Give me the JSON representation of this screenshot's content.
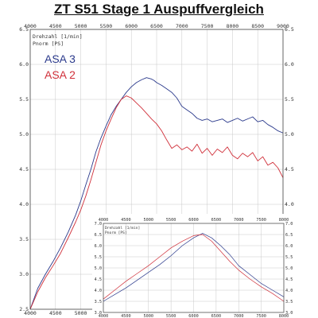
{
  "title": "ZT S51 Stage 1 Auspuffvergleich",
  "colors": {
    "asa3": "#2b3a8c",
    "asa2": "#d0303a",
    "grid": "#c8c8c8",
    "axis": "#444444"
  },
  "chart_data": [
    {
      "type": "line",
      "xlabel": "Drehzahl [1/min]",
      "ylabel": "Pnorm [PS]",
      "xlim": [
        4000,
        9000
      ],
      "ylim": [
        2.5,
        6.5
      ],
      "xticks": [
        "4000",
        "4500",
        "5000",
        "5500",
        "6000",
        "6500",
        "7000",
        "7500",
        "8000",
        "8500",
        "9000"
      ],
      "yticks": [
        "2.5",
        "3.0",
        "3.5",
        "4.0",
        "4.5",
        "5.0",
        "5.5",
        "6.0",
        "6.5"
      ],
      "grid": true,
      "legend_position": "top-left",
      "series": [
        {
          "name": "ASA 3",
          "color": "#2b3a8c",
          "x": [
            4000,
            4150,
            4300,
            4450,
            4600,
            4750,
            4900,
            5000,
            5100,
            5200,
            5300,
            5400,
            5500,
            5600,
            5700,
            5800,
            5900,
            6000,
            6100,
            6200,
            6300,
            6400,
            6450,
            6500,
            6600,
            6700,
            6800,
            6900,
            7000,
            7100,
            7200,
            7300,
            7400,
            7500,
            7600,
            7700,
            7800,
            7900,
            8000,
            8100,
            8200,
            8300,
            8400,
            8500,
            8600,
            8700,
            8800,
            8900,
            9000
          ],
          "y": [
            2.5,
            2.8,
            3.0,
            3.18,
            3.38,
            3.6,
            3.85,
            4.05,
            4.28,
            4.5,
            4.75,
            4.95,
            5.12,
            5.28,
            5.4,
            5.5,
            5.6,
            5.68,
            5.74,
            5.78,
            5.81,
            5.79,
            5.77,
            5.74,
            5.7,
            5.65,
            5.6,
            5.52,
            5.4,
            5.35,
            5.3,
            5.23,
            5.2,
            5.22,
            5.18,
            5.2,
            5.22,
            5.17,
            5.2,
            5.23,
            5.19,
            5.22,
            5.25,
            5.18,
            5.2,
            5.14,
            5.1,
            5.05,
            5.02
          ]
        },
        {
          "name": "ASA 2",
          "color": "#d0303a",
          "x": [
            4000,
            4150,
            4300,
            4450,
            4600,
            4750,
            4900,
            5000,
            5100,
            5200,
            5300,
            5400,
            5500,
            5600,
            5700,
            5800,
            5900,
            6000,
            6100,
            6200,
            6300,
            6400,
            6500,
            6600,
            6700,
            6800,
            6900,
            7000,
            7100,
            7200,
            7300,
            7400,
            7500,
            7600,
            7700,
            7800,
            7900,
            8000,
            8100,
            8200,
            8300,
            8400,
            8500,
            8600,
            8700,
            8800,
            8900,
            9000
          ],
          "y": [
            2.5,
            2.75,
            2.95,
            3.12,
            3.3,
            3.52,
            3.75,
            3.92,
            4.12,
            4.35,
            4.6,
            4.85,
            5.05,
            5.22,
            5.38,
            5.5,
            5.55,
            5.52,
            5.45,
            5.38,
            5.3,
            5.22,
            5.15,
            5.05,
            4.92,
            4.8,
            4.85,
            4.78,
            4.82,
            4.76,
            4.86,
            4.73,
            4.8,
            4.7,
            4.79,
            4.74,
            4.82,
            4.7,
            4.65,
            4.73,
            4.68,
            4.74,
            4.62,
            4.68,
            4.56,
            4.6,
            4.52,
            4.38
          ]
        }
      ]
    },
    {
      "type": "line",
      "xlabel": "Drehzahl [1/min]",
      "ylabel": "Pnorm [PS]",
      "xlim": [
        4000,
        8000
      ],
      "ylim": [
        3.0,
        7.0
      ],
      "xticks": [
        "4000",
        "4500",
        "5000",
        "5500",
        "6000",
        "6500",
        "7000",
        "7500",
        "8000"
      ],
      "yticks": [
        "3.0",
        "3.5",
        "4.0",
        "4.5",
        "5.0",
        "5.5",
        "6.0",
        "6.5",
        "7.0"
      ],
      "grid": true,
      "series": [
        {
          "name": "ASA 3",
          "color": "#2b3a8c",
          "x": [
            4000,
            4250,
            4500,
            4750,
            5000,
            5250,
            5500,
            5750,
            6000,
            6200,
            6400,
            6600,
            6800,
            7000,
            7250,
            7500,
            7750,
            8000
          ],
          "y": [
            3.5,
            3.8,
            4.1,
            4.45,
            4.8,
            5.15,
            5.55,
            6.0,
            6.35,
            6.55,
            6.35,
            6.0,
            5.6,
            5.1,
            4.7,
            4.3,
            4.0,
            3.7
          ]
        },
        {
          "name": "ASA 2",
          "color": "#d0303a",
          "x": [
            4000,
            4250,
            4500,
            4750,
            5000,
            5250,
            5500,
            5750,
            6000,
            6200,
            6400,
            6600,
            6800,
            7000,
            7250,
            7500,
            7750,
            8000
          ],
          "y": [
            3.6,
            4.0,
            4.4,
            4.75,
            5.1,
            5.5,
            5.9,
            6.2,
            6.45,
            6.5,
            6.2,
            5.75,
            5.3,
            4.9,
            4.5,
            4.15,
            3.85,
            3.5
          ]
        }
      ]
    }
  ]
}
